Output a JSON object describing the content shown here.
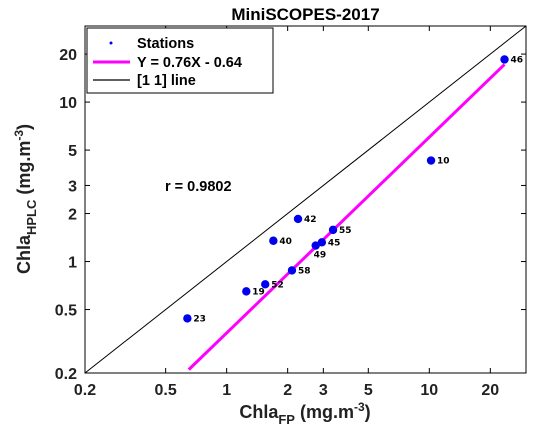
{
  "chart_data": {
    "type": "scatter",
    "title": "MiniSCOPES-2017",
    "xlabel": {
      "main": "Chla",
      "sub": "FP",
      "unit_pre": " (mg.m",
      "sup": "-3",
      "unit_post": ")"
    },
    "ylabel": {
      "main": "Chla",
      "sub": "HPLC",
      "unit_pre": " (mg.m",
      "sup": "-3",
      "unit_post": ")"
    },
    "x_scale": "log",
    "y_scale": "log",
    "xlim": [
      0.2,
      30
    ],
    "ylim": [
      0.2,
      30
    ],
    "x_ticks": [
      0.2,
      0.5,
      1,
      2,
      3,
      5,
      10,
      20
    ],
    "x_tick_labels": [
      "0.2",
      "0.5",
      "1",
      "2",
      "3",
      "5",
      "10",
      "20"
    ],
    "y_ticks": [
      0.2,
      0.5,
      1,
      2,
      3,
      5,
      10,
      20
    ],
    "y_tick_labels": [
      "0.2",
      "0.5",
      "1",
      "2",
      "3",
      "5",
      "10",
      "20"
    ],
    "grid": false,
    "legend_position": "top-left",
    "points": [
      {
        "label": "23",
        "x": 0.64,
        "y": 0.44
      },
      {
        "label": "19",
        "x": 1.25,
        "y": 0.65
      },
      {
        "label": "52",
        "x": 1.55,
        "y": 0.72
      },
      {
        "label": "58",
        "x": 2.1,
        "y": 0.88
      },
      {
        "label": "40",
        "x": 1.7,
        "y": 1.35
      },
      {
        "label": "42",
        "x": 2.25,
        "y": 1.85
      },
      {
        "label": "49",
        "x": 2.75,
        "y": 1.26
      },
      {
        "label": "45",
        "x": 2.95,
        "y": 1.32
      },
      {
        "label": "55",
        "x": 3.35,
        "y": 1.58
      },
      {
        "label": "10",
        "x": 10.2,
        "y": 4.3
      },
      {
        "label": "46",
        "x": 23.5,
        "y": 18.5
      }
    ],
    "fit_line": {
      "slope": 0.76,
      "intercept": -0.64,
      "x_range": [
        0.65,
        23.5
      ]
    },
    "identity_line": {
      "x_range": [
        0.2,
        30
      ]
    },
    "annotation": "r = 0.9802",
    "legend": [
      {
        "label": "Stations",
        "kind": "marker"
      },
      {
        "label": "Y = 0.76X - 0.64",
        "kind": "fit"
      },
      {
        "label": "[1 1] line",
        "kind": "identity"
      }
    ],
    "colors": {
      "points": "#0000ee",
      "fit": "#ff00ff",
      "identity": "#000000"
    }
  }
}
